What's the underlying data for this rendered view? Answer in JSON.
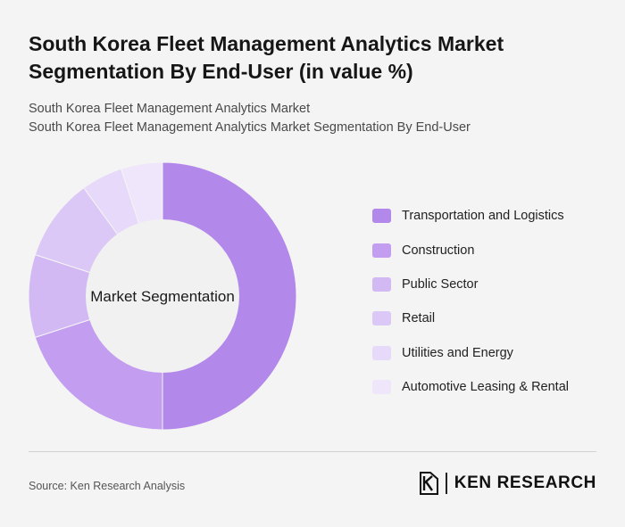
{
  "header": {
    "title": "South Korea Fleet Management Analytics Market Segmentation By End-User (in value %)",
    "subtitle_line1": "South Korea Fleet Management Analytics Market",
    "subtitle_line2": "South Korea Fleet Management Analytics Market Segmentation By End-User"
  },
  "chart_data": {
    "type": "pie",
    "donut": true,
    "center_label": "Market Segmentation",
    "categories": [
      "Transportation and Logistics",
      "Construction",
      "Public Sector",
      "Retail",
      "Utilities and Energy",
      "Automotive Leasing & Rental"
    ],
    "values": [
      50,
      20,
      10,
      10,
      5,
      5
    ],
    "colors": [
      "#b388eb",
      "#c39ef0",
      "#d3b9f4",
      "#dcc8f6",
      "#e6d9f9",
      "#efe6fb"
    ],
    "legend_position": "right"
  },
  "footer": {
    "source": "Source: Ken Research Analysis",
    "logo_text": "KEN RESEARCH"
  }
}
